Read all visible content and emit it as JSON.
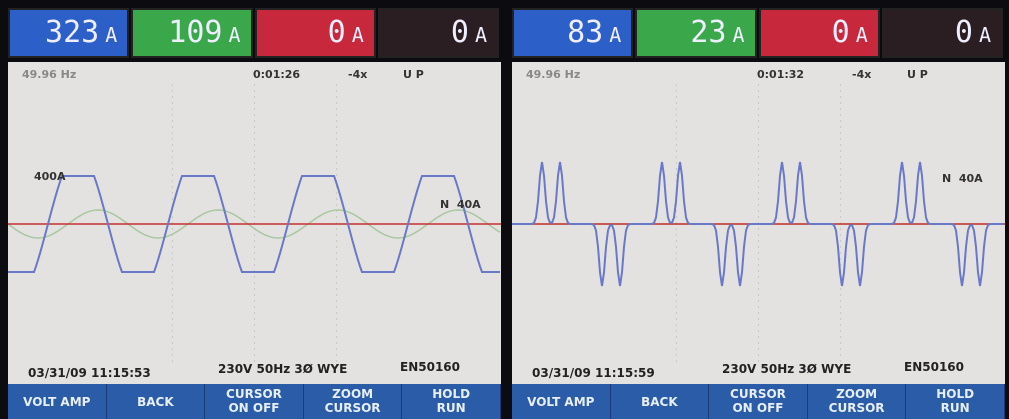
{
  "panels": [
    {
      "readings": [
        {
          "value": "323",
          "unit": "A"
        },
        {
          "value": "109",
          "unit": "A"
        },
        {
          "value": "0",
          "unit": "A"
        },
        {
          "value": "0",
          "unit": "A"
        }
      ],
      "status": {
        "frequency": "49.96 Hz",
        "time": "0:01:26",
        "zoom": "-4x",
        "mode": "U P"
      },
      "scale_labels": [
        "400A",
        "N  40A"
      ],
      "footer": {
        "datetime": "03/31/09 11:15:53",
        "config": "230V 50Hz 3Ø WYE",
        "standard": "EN50160"
      }
    },
    {
      "readings": [
        {
          "value": "83",
          "unit": "A"
        },
        {
          "value": "23",
          "unit": "A"
        },
        {
          "value": "0",
          "unit": "A"
        },
        {
          "value": "0",
          "unit": "A"
        }
      ],
      "status": {
        "frequency": "49.96 Hz",
        "time": "0:01:32",
        "zoom": "-4x",
        "mode": "U P"
      },
      "scale_labels": [
        "N  40A"
      ],
      "footer": {
        "datetime": "03/31/09 11:15:59",
        "config": "230V 50Hz 3Ø WYE",
        "standard": "EN50160"
      }
    }
  ],
  "softkeys": [
    [
      "VOLT AMP"
    ],
    [
      "BACK"
    ],
    [
      "CURSOR",
      "ON OFF"
    ],
    [
      "ZOOM",
      "CURSOR"
    ],
    [
      "HOLD",
      "RUN"
    ]
  ]
}
